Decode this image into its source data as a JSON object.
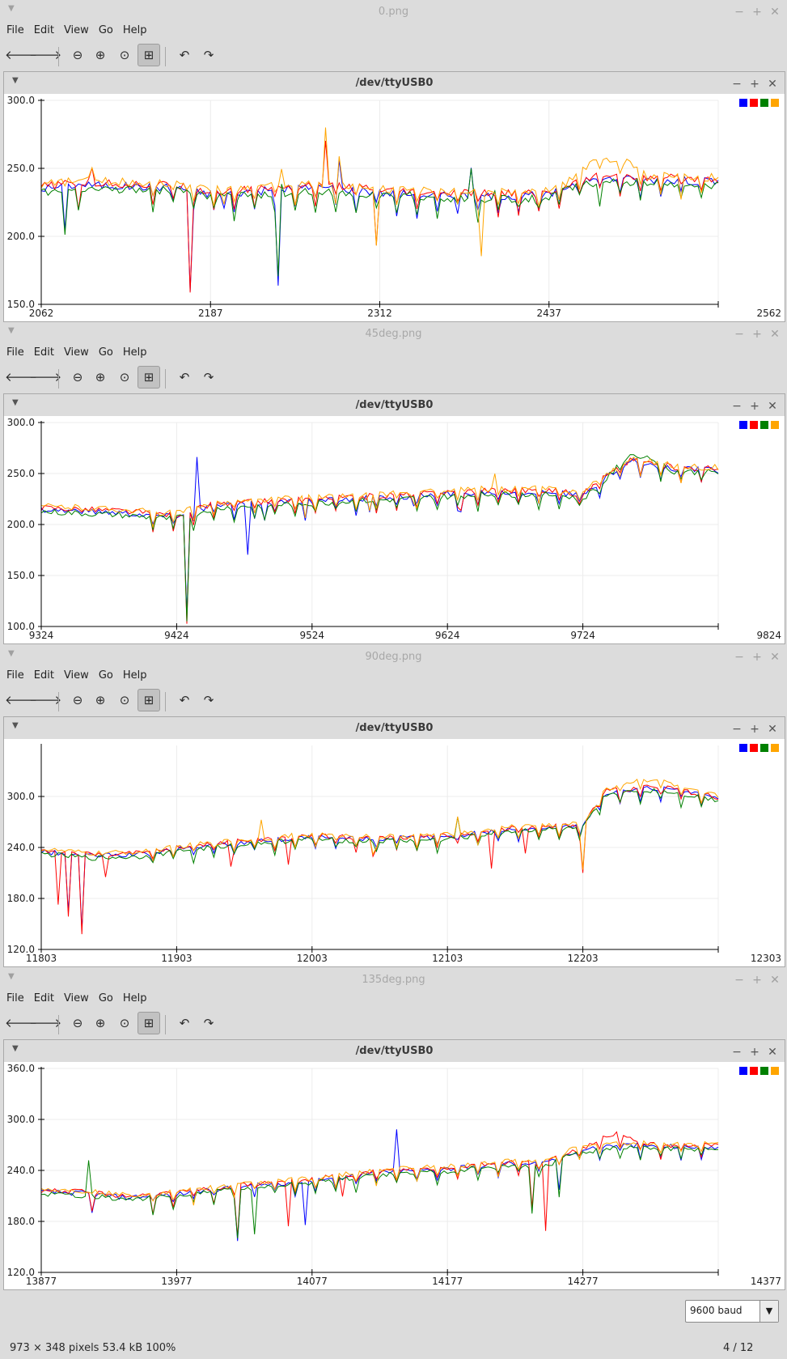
{
  "menu": [
    "File",
    "Edit",
    "View",
    "Go",
    "Help"
  ],
  "inner_title": "/dev/ttyUSB0",
  "series_colors": [
    "#0000ff",
    "#ff0000",
    "#008000",
    "#ffa500"
  ],
  "windows": [
    {
      "file_title": "0.png",
      "chart": {
        "type": "line",
        "xlim": [
          2062,
          2562
        ],
        "ylim": [
          150,
          300
        ],
        "yticks": [
          "150.0",
          "200.0",
          "250.0",
          "300.0"
        ],
        "xticks": [
          "2062",
          "2187",
          "2312",
          "2437",
          "2562"
        ],
        "base": [
          [
            2062,
            235
          ],
          [
            2090,
            238
          ],
          [
            2120,
            237
          ],
          [
            2160,
            236
          ],
          [
            2187,
            231
          ],
          [
            2220,
            233
          ],
          [
            2260,
            236
          ],
          [
            2300,
            234
          ],
          [
            2312,
            232
          ],
          [
            2360,
            230
          ],
          [
            2400,
            230
          ],
          [
            2437,
            230
          ],
          [
            2450,
            237
          ],
          [
            2470,
            242
          ],
          [
            2500,
            242
          ],
          [
            2540,
            241
          ],
          [
            2562,
            240
          ]
        ],
        "spikes": [
          [
            2080,
            -40,
            [
              0,
              2
            ]
          ],
          [
            2090,
            -20,
            [
              1,
              2
            ]
          ],
          [
            2100,
            12,
            [
              3,
              1
            ]
          ],
          [
            2172,
            -80,
            [
              0,
              1
            ]
          ],
          [
            2196,
            -12,
            [
              0,
              3
            ]
          ],
          [
            2238,
            -70,
            [
              0,
              2
            ]
          ],
          [
            2240,
            10,
            [
              3,
              2
            ]
          ],
          [
            2272,
            40,
            [
              1,
              3
            ]
          ],
          [
            2282,
            22,
            [
              0,
              3
            ]
          ],
          [
            2310,
            -30,
            [
              1,
              3
            ]
          ],
          [
            2335,
            8,
            [
              2
            ]
          ],
          [
            2380,
            25,
            [
              0,
              2
            ]
          ],
          [
            2386,
            -50,
            [
              3
            ]
          ],
          [
            2396,
            8,
            [
              2
            ]
          ]
        ],
        "bump": {
          "x0": 2452,
          "x1": 2510,
          "amp": 12,
          "series": 3
        }
      }
    },
    {
      "file_title": "45deg.png",
      "chart": {
        "type": "line",
        "xlim": [
          9324,
          9824
        ],
        "ylim": [
          100,
          300
        ],
        "yticks": [
          "100.0",
          "150.0",
          "200.0",
          "250.0",
          "300.0"
        ],
        "xticks": [
          "9324",
          "9424",
          "9524",
          "9624",
          "9724",
          "9824"
        ],
        "base": [
          [
            9324,
            215
          ],
          [
            9380,
            212
          ],
          [
            9420,
            208
          ],
          [
            9430,
            210
          ],
          [
            9450,
            218
          ],
          [
            9500,
            222
          ],
          [
            9550,
            225
          ],
          [
            9600,
            228
          ],
          [
            9650,
            232
          ],
          [
            9700,
            232
          ],
          [
            9724,
            228
          ],
          [
            9740,
            245
          ],
          [
            9760,
            262
          ],
          [
            9790,
            255
          ],
          [
            9824,
            253
          ]
        ],
        "spikes": [
          [
            9431,
            -110,
            [
              1,
              0,
              2
            ]
          ],
          [
            9440,
            55,
            [
              0
            ]
          ],
          [
            9476,
            -55,
            [
              0
            ]
          ],
          [
            9490,
            -15,
            [
              0,
              2
            ]
          ],
          [
            9520,
            -18,
            [
              0,
              3
            ]
          ],
          [
            9566,
            -15,
            [
              0,
              3
            ]
          ],
          [
            9600,
            -12,
            [
              0,
              3
            ]
          ],
          [
            9635,
            -20,
            [
              1,
              0
            ]
          ],
          [
            9660,
            12,
            [
              3
            ]
          ]
        ],
        "bump": {
          "x0": 9740,
          "x1": 9790,
          "amp": 10,
          "series": 2
        }
      }
    },
    {
      "file_title": "90deg.png",
      "chart": {
        "type": "line",
        "xlim": [
          11803,
          12303
        ],
        "ylim": [
          120,
          360
        ],
        "yticks": [
          "120.0",
          "180.0",
          "240.0",
          "300.0"
        ],
        "xticks": [
          "11803",
          "11903",
          "12003",
          "12103",
          "12203",
          "12303"
        ],
        "base": [
          [
            11803,
            235
          ],
          [
            11840,
            230
          ],
          [
            11880,
            232
          ],
          [
            11903,
            238
          ],
          [
            11950,
            246
          ],
          [
            12000,
            252
          ],
          [
            12050,
            250
          ],
          [
            12103,
            252
          ],
          [
            12150,
            262
          ],
          [
            12203,
            265
          ],
          [
            12220,
            305
          ],
          [
            12260,
            310
          ],
          [
            12303,
            298
          ]
        ],
        "spikes": [
          [
            11815,
            -70,
            [
              1
            ]
          ],
          [
            11824,
            -80,
            [
              0,
              1
            ]
          ],
          [
            11832,
            -95,
            [
              1,
              0
            ]
          ],
          [
            11850,
            -30,
            [
              1
            ]
          ],
          [
            11944,
            -30,
            [
              1
            ]
          ],
          [
            11965,
            25,
            [
              3
            ]
          ],
          [
            11985,
            -35,
            [
              1
            ]
          ],
          [
            12048,
            -25,
            [
              1,
              3
            ]
          ],
          [
            12110,
            35,
            [
              2,
              3
            ]
          ],
          [
            12135,
            -45,
            [
              1
            ]
          ],
          [
            12160,
            -35,
            [
              1
            ]
          ],
          [
            12203,
            -60,
            [
              1,
              3
            ]
          ]
        ],
        "bump": {
          "x0": 12220,
          "x1": 12280,
          "amp": 8,
          "series": 3
        }
      }
    },
    {
      "file_title": "135deg.png",
      "chart": {
        "type": "line",
        "xlim": [
          13877,
          14377
        ],
        "ylim": [
          120,
          360
        ],
        "yticks": [
          "120.0",
          "180.0",
          "240.0",
          "300.0",
          "360.0"
        ],
        "xticks": [
          "13877",
          "13977",
          "14077",
          "14177",
          "14277",
          "14377"
        ],
        "base": [
          [
            13877,
            215
          ],
          [
            13910,
            213
          ],
          [
            13940,
            208
          ],
          [
            13977,
            212
          ],
          [
            14020,
            220
          ],
          [
            14077,
            228
          ],
          [
            14130,
            238
          ],
          [
            14177,
            242
          ],
          [
            14220,
            248
          ],
          [
            14250,
            248
          ],
          [
            14270,
            262
          ],
          [
            14300,
            270
          ],
          [
            14340,
            268
          ],
          [
            14377,
            268
          ]
        ],
        "spikes": [
          [
            13913,
            50,
            [
              2
            ]
          ],
          [
            13914,
            -25,
            [
              1,
              0
            ]
          ],
          [
            13960,
            -15,
            [
              1,
              2
            ]
          ],
          [
            14022,
            -70,
            [
              0,
              1,
              2
            ]
          ],
          [
            14035,
            -50,
            [
              2
            ]
          ],
          [
            14060,
            -60,
            [
              1
            ]
          ],
          [
            14072,
            -55,
            [
              0
            ]
          ],
          [
            14100,
            -30,
            [
              1
            ]
          ],
          [
            14140,
            60,
            [
              0
            ]
          ],
          [
            14240,
            -60,
            [
              1,
              2
            ]
          ],
          [
            14250,
            -85,
            [
              1
            ]
          ],
          [
            14260,
            -30,
            [
              0,
              2
            ]
          ]
        ],
        "bump": {
          "x0": 14277,
          "x1": 14320,
          "amp": 12,
          "series": 1
        }
      }
    }
  ],
  "status": {
    "baud": "9600 baud",
    "image_info": "973 × 348 pixels  53.4 kB   100%",
    "page": "4 / 12"
  }
}
